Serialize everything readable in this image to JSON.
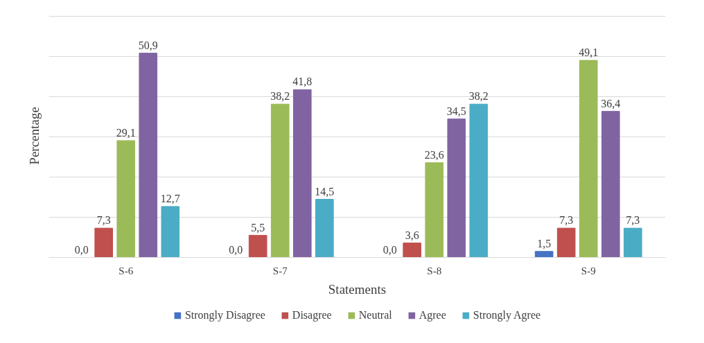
{
  "chart_data": {
    "type": "bar",
    "xlabel": "Statements",
    "ylabel": "Percentage",
    "categories": [
      "S-6",
      "S-7",
      "S-8",
      "S-9"
    ],
    "series": [
      {
        "name": "Strongly Disagree",
        "color": "#4472c4",
        "values": [
          0.0,
          0.0,
          0.0,
          1.5
        ],
        "value_labels": [
          "0,0",
          "0,0",
          "0,0",
          "1,5"
        ]
      },
      {
        "name": "Disagree",
        "color": "#c0504d",
        "values": [
          7.3,
          5.5,
          3.6,
          7.3
        ],
        "value_labels": [
          "7,3",
          "5,5",
          "3,6",
          "7,3"
        ]
      },
      {
        "name": "Neutral",
        "color": "#9bbb59",
        "values": [
          29.1,
          38.2,
          23.6,
          49.1
        ],
        "value_labels": [
          "29,1",
          "38,2",
          "23,6",
          "49,1"
        ]
      },
      {
        "name": "Agree",
        "color": "#8064a2",
        "values": [
          50.9,
          41.8,
          34.5,
          36.4
        ],
        "value_labels": [
          "50,9",
          "41,8",
          "34,5",
          "36,4"
        ]
      },
      {
        "name": "Strongly Agree",
        "color": "#4bacc6",
        "values": [
          12.7,
          14.5,
          38.2,
          7.3
        ],
        "value_labels": [
          "12,7",
          "14,5",
          "38,2",
          "7,3"
        ]
      }
    ],
    "ylim": [
      0,
      60
    ],
    "yticks": [
      {
        "value": 0,
        "label": null
      },
      {
        "value": 10,
        "label": null
      },
      {
        "value": 20,
        "label": null
      },
      {
        "value": 30,
        "label": null
      },
      {
        "value": 40,
        "label": null
      },
      {
        "value": 50,
        "label": null
      },
      {
        "value": 60,
        "label": null
      }
    ],
    "tick_labels": "x",
    "grid": "y",
    "legend": "bottom"
  }
}
